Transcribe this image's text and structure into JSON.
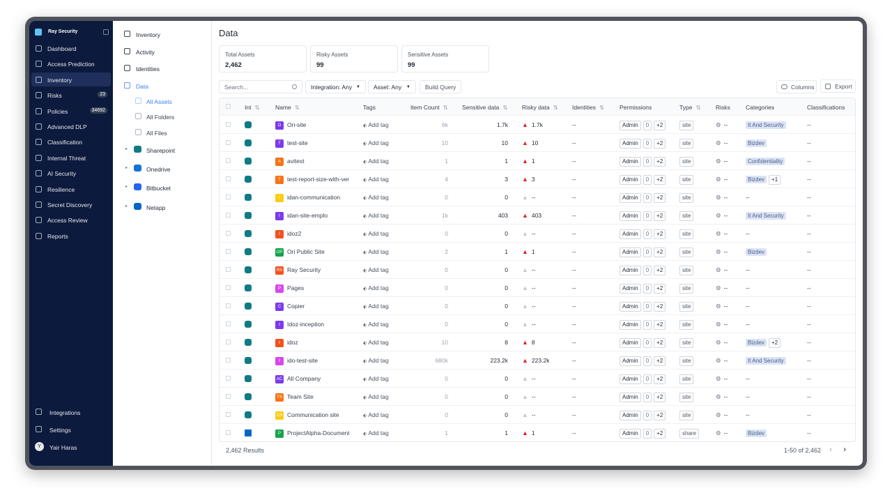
{
  "sidebar": {
    "brand": "Ray Security",
    "nav": [
      {
        "label": "Dashboard"
      },
      {
        "label": "Access Prediction"
      },
      {
        "label": "Inventory",
        "active": true
      },
      {
        "label": "Risks",
        "badge": "23"
      },
      {
        "label": "Policies",
        "badge": "34692"
      },
      {
        "label": "Advanced DLP"
      },
      {
        "label": "Classification"
      },
      {
        "label": "Internal Threat"
      },
      {
        "label": "AI Security"
      },
      {
        "label": "Resilience"
      },
      {
        "label": "Secret Discovery"
      },
      {
        "label": "Access Review"
      },
      {
        "label": "Reports"
      }
    ],
    "footer": [
      {
        "label": "Integrations"
      },
      {
        "label": "Settings"
      }
    ],
    "user": {
      "initial": "Y",
      "name": "Yair Haras"
    }
  },
  "subnav": {
    "sections": [
      {
        "label": "Inventory"
      },
      {
        "label": "Activity"
      },
      {
        "label": "Identities"
      },
      {
        "label": "Data",
        "active": true
      }
    ],
    "data_items": [
      {
        "label": "All Assets",
        "active": true
      },
      {
        "label": "All Folders"
      },
      {
        "label": "All Files"
      }
    ],
    "integrations": [
      {
        "label": "Sharepoint",
        "color": "#0f7b84"
      },
      {
        "label": "Onedrive",
        "color": "#1473d6"
      },
      {
        "label": "Bitbucket",
        "color": "#2563eb"
      },
      {
        "label": "Netapp",
        "color": "#0067c5"
      }
    ]
  },
  "main": {
    "title": "Data",
    "stats": [
      {
        "label": "Total Assets",
        "value": "2,462"
      },
      {
        "label": "Risky Assets",
        "value": "99"
      },
      {
        "label": "Sensitive Assets",
        "value": "99"
      }
    ],
    "toolbar": {
      "search": "Search...",
      "filters": [
        "Integration: Any",
        "Asset: Any"
      ],
      "build": "Build Query",
      "columns": "Columns",
      "export": "Export"
    },
    "table": {
      "headers": [
        "Int",
        "Name",
        "Tags",
        "Item Count",
        "Sensitive data",
        "Risky data",
        "Identities",
        "Permissions",
        "Type",
        "Risks",
        "Categories",
        "Classifications"
      ],
      "rows": [
        {
          "int": "sharepoint",
          "icon": "O",
          "color": "#7c3aed",
          "name": "Ori-site",
          "tag": "Add tag",
          "item_count": "6k",
          "sensitive": "1.7k",
          "risky": "1.7k",
          "identities": "--",
          "permissions": [
            "Admin",
            "0",
            "+2"
          ],
          "type": "site",
          "risks": "--",
          "categories": [
            "It And Security"
          ],
          "classifications": "--"
        },
        {
          "int": "sharepoint",
          "icon": "T",
          "color": "#7c3aed",
          "name": "test-site",
          "tag": "Add tag",
          "item_count": "10",
          "sensitive": "10",
          "risky": "10",
          "identities": "--",
          "permissions": [
            "Admin",
            "0",
            "+2"
          ],
          "type": "site",
          "risks": "--",
          "categories": [
            "Bizdev"
          ],
          "classifications": "--"
        },
        {
          "int": "sharepoint",
          "icon": "A",
          "color": "#f97316",
          "name": "avitest",
          "tag": "Add tag",
          "item_count": "1",
          "sensitive": "1",
          "risky": "1",
          "identities": "--",
          "permissions": [
            "Admin",
            "0",
            "+2"
          ],
          "type": "site",
          "risks": "--",
          "categories": [
            "Confidentiality"
          ],
          "classifications": "--"
        },
        {
          "int": "sharepoint",
          "icon": "T",
          "color": "#f97316",
          "name": "test-report-size-with-ver",
          "tag": "Add tag",
          "item_count": "4",
          "sensitive": "3",
          "risky": "3",
          "identities": "--",
          "permissions": [
            "Admin",
            "0",
            "+2"
          ],
          "type": "site",
          "risks": "--",
          "categories": [
            "Bizdev",
            "+1"
          ],
          "classifications": "--"
        },
        {
          "int": "sharepoint",
          "icon": "I",
          "color": "#facc15",
          "name": "idan-communication",
          "tag": "Add tag",
          "item_count": "0",
          "sensitive": "0",
          "risky": "--",
          "identities": "--",
          "permissions": [
            "Admin",
            "0",
            "+2"
          ],
          "type": "site",
          "risks": "--",
          "categories": [
            "--"
          ],
          "classifications": "--"
        },
        {
          "int": "sharepoint",
          "icon": "I",
          "color": "#7c3aed",
          "name": "idan-site-emplo",
          "tag": "Add tag",
          "item_count": "1k",
          "sensitive": "403",
          "risky": "403",
          "identities": "--",
          "permissions": [
            "Admin",
            "0",
            "+2"
          ],
          "type": "site",
          "risks": "--",
          "categories": [
            "It And Security"
          ],
          "classifications": "--"
        },
        {
          "int": "sharepoint",
          "icon": "I",
          "color": "#f4511e",
          "name": "idoz2",
          "tag": "Add tag",
          "item_count": "0",
          "sensitive": "0",
          "risky": "--",
          "identities": "--",
          "permissions": [
            "Admin",
            "0",
            "+2"
          ],
          "type": "site",
          "risks": "--",
          "categories": [
            "--"
          ],
          "classifications": "--"
        },
        {
          "int": "sharepoint",
          "icon": "OP",
          "color": "#16a34a",
          "name": "Ori Public Site",
          "tag": "Add tag",
          "item_count": "2",
          "sensitive": "1",
          "risky": "1",
          "identities": "--",
          "permissions": [
            "Admin",
            "0",
            "+2"
          ],
          "type": "site",
          "risks": "--",
          "categories": [
            "Bizdev"
          ],
          "classifications": "--"
        },
        {
          "int": "sharepoint",
          "icon": "RS",
          "color": "#f4511e",
          "name": "Ray Security",
          "tag": "Add tag",
          "item_count": "0",
          "sensitive": "0",
          "risky": "--",
          "identities": "--",
          "permissions": [
            "Admin",
            "0",
            "+2"
          ],
          "type": "site",
          "risks": "--",
          "categories": [
            "--"
          ],
          "classifications": "--"
        },
        {
          "int": "sharepoint",
          "icon": "P",
          "color": "#d946ef",
          "name": "Pages",
          "tag": "Add tag",
          "item_count": "0",
          "sensitive": "0",
          "risky": "--",
          "identities": "--",
          "permissions": [
            "Admin",
            "0",
            "+2"
          ],
          "type": "site",
          "risks": "--",
          "categories": [
            "--"
          ],
          "classifications": "--"
        },
        {
          "int": "sharepoint",
          "icon": "C",
          "color": "#7c3aed",
          "name": "Copier",
          "tag": "Add tag",
          "item_count": "0",
          "sensitive": "0",
          "risky": "--",
          "identities": "--",
          "permissions": [
            "Admin",
            "0",
            "+2"
          ],
          "type": "site",
          "risks": "--",
          "categories": [
            "--"
          ],
          "classifications": "--"
        },
        {
          "int": "sharepoint",
          "icon": "I",
          "color": "#7c3aed",
          "name": "Idoz-inception",
          "tag": "Add tag",
          "item_count": "0",
          "sensitive": "0",
          "risky": "--",
          "identities": "--",
          "permissions": [
            "Admin",
            "0",
            "+2"
          ],
          "type": "site",
          "risks": "--",
          "categories": [
            "--"
          ],
          "classifications": "--"
        },
        {
          "int": "sharepoint",
          "icon": "I",
          "color": "#f4511e",
          "name": "idoz",
          "tag": "Add tag",
          "item_count": "10",
          "sensitive": "8",
          "risky": "8",
          "identities": "--",
          "permissions": [
            "Admin",
            "0",
            "+2"
          ],
          "type": "site",
          "risks": "--",
          "categories": [
            "Bizdev",
            "+2"
          ],
          "classifications": "--"
        },
        {
          "int": "sharepoint",
          "icon": "I",
          "color": "#d946ef",
          "name": "ido-test-site",
          "tag": "Add tag",
          "item_count": "680k",
          "sensitive": "223.2k",
          "risky": "223.2k",
          "identities": "--",
          "permissions": [
            "Admin",
            "0",
            "+2"
          ],
          "type": "site",
          "risks": "--",
          "categories": [
            "It And Security"
          ],
          "classifications": "--"
        },
        {
          "int": "sharepoint",
          "icon": "AC",
          "color": "#7c3aed",
          "name": "All Company",
          "tag": "Add tag",
          "item_count": "0",
          "sensitive": "0",
          "risky": "--",
          "identities": "--",
          "permissions": [
            "Admin",
            "0",
            "+2"
          ],
          "type": "site",
          "risks": "--",
          "categories": [
            "--"
          ],
          "classifications": "--"
        },
        {
          "int": "sharepoint",
          "icon": "TS",
          "color": "#f97316",
          "name": "Team Site",
          "tag": "Add tag",
          "item_count": "0",
          "sensitive": "0",
          "risky": "--",
          "identities": "--",
          "permissions": [
            "Admin",
            "0",
            "+2"
          ],
          "type": "site",
          "risks": "--",
          "categories": [
            "--"
          ],
          "classifications": "--"
        },
        {
          "int": "sharepoint",
          "icon": "CS",
          "color": "#facc15",
          "name": "Communication site",
          "tag": "Add tag",
          "item_count": "0",
          "sensitive": "0",
          "risky": "--",
          "identities": "--",
          "permissions": [
            "Admin",
            "0",
            "+2"
          ],
          "type": "site",
          "risks": "--",
          "categories": [
            "--"
          ],
          "classifications": "--"
        },
        {
          "int": "netapp",
          "icon": "P",
          "color": "#16a34a",
          "name": "ProjectAlpha-Documents",
          "tag": "Add tag",
          "item_count": "1",
          "sensitive": "1",
          "risky": "1",
          "identities": "--",
          "permissions": [
            "Admin",
            "0",
            "+2"
          ],
          "type": "share",
          "risks": "--",
          "categories": [
            "Bizdev"
          ],
          "classifications": "--"
        }
      ]
    },
    "footer": {
      "results": "2,462 Results",
      "pagination": "1-50 of 2,462"
    }
  }
}
